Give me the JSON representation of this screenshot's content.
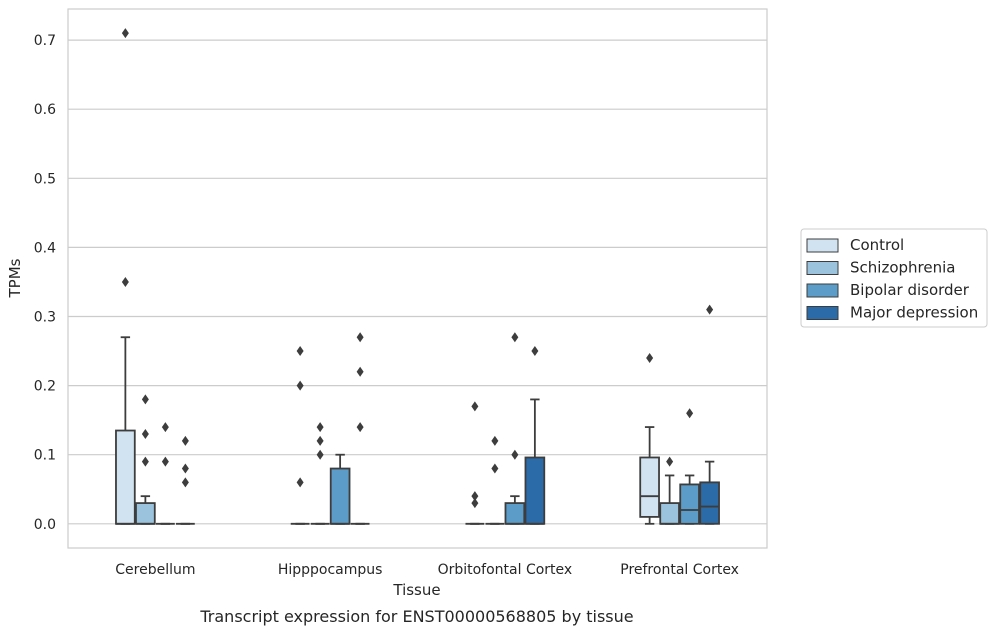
{
  "chart_data": {
    "type": "box",
    "caption": "Transcript expression for ENST00000568805 by tissue",
    "xlabel": "Tissue",
    "ylabel": "TPMs",
    "categories": [
      "Cerebellum",
      "Hipppocampus",
      "Orbitofontal Cortex",
      "Prefrontal Cortex"
    ],
    "ylim": [
      -0.035,
      0.745
    ],
    "yticks": [
      0.0,
      0.1,
      0.2,
      0.3,
      0.4,
      0.5,
      0.6,
      0.7
    ],
    "ytick_labels": [
      "0.0",
      "0.1",
      "0.2",
      "0.3",
      "0.4",
      "0.5",
      "0.6",
      "0.7"
    ],
    "grid": "horizontal",
    "legend_position": "outside-right",
    "series": [
      {
        "name": "Control",
        "color": "#d1e2f0",
        "boxes": [
          {
            "q1": 0.0,
            "median": 0.0,
            "q3": 0.135,
            "whisker_low": 0.0,
            "whisker_high": 0.27,
            "outliers": [
              0.35,
              0.71
            ]
          },
          {
            "q1": 0.0,
            "median": 0.0,
            "q3": 0.0,
            "whisker_low": 0.0,
            "whisker_high": 0.0,
            "outliers": [
              0.06,
              0.2,
              0.25
            ]
          },
          {
            "q1": 0.0,
            "median": 0.0,
            "q3": 0.0,
            "whisker_low": 0.0,
            "whisker_high": 0.0,
            "outliers": [
              0.03,
              0.04,
              0.17
            ]
          },
          {
            "q1": 0.01,
            "median": 0.04,
            "q3": 0.096,
            "whisker_low": 0.0,
            "whisker_high": 0.14,
            "outliers": [
              0.24
            ]
          }
        ]
      },
      {
        "name": "Schizophrenia",
        "color": "#9bc3dd",
        "boxes": [
          {
            "q1": 0.0,
            "median": 0.0,
            "q3": 0.03,
            "whisker_low": 0.0,
            "whisker_high": 0.04,
            "outliers": [
              0.09,
              0.13,
              0.18
            ]
          },
          {
            "q1": 0.0,
            "median": 0.0,
            "q3": 0.0,
            "whisker_low": 0.0,
            "whisker_high": 0.0,
            "outliers": [
              0.1,
              0.12,
              0.14
            ]
          },
          {
            "q1": 0.0,
            "median": 0.0,
            "q3": 0.0,
            "whisker_low": 0.0,
            "whisker_high": 0.0,
            "outliers": [
              0.08,
              0.12
            ]
          },
          {
            "q1": 0.0,
            "median": 0.0,
            "q3": 0.03,
            "whisker_low": 0.0,
            "whisker_high": 0.07,
            "outliers": [
              0.09
            ]
          }
        ]
      },
      {
        "name": "Bipolar disorder",
        "color": "#5b9cc8",
        "boxes": [
          {
            "q1": 0.0,
            "median": 0.0,
            "q3": 0.0,
            "whisker_low": 0.0,
            "whisker_high": 0.0,
            "outliers": [
              0.09,
              0.14
            ]
          },
          {
            "q1": 0.0,
            "median": 0.0,
            "q3": 0.08,
            "whisker_low": 0.0,
            "whisker_high": 0.1,
            "outliers": []
          },
          {
            "q1": 0.0,
            "median": 0.0,
            "q3": 0.03,
            "whisker_low": 0.0,
            "whisker_high": 0.04,
            "outliers": [
              0.1,
              0.27
            ]
          },
          {
            "q1": 0.0,
            "median": 0.02,
            "q3": 0.057,
            "whisker_low": 0.0,
            "whisker_high": 0.07,
            "outliers": [
              0.16
            ]
          }
        ]
      },
      {
        "name": "Major depression",
        "color": "#2b6ba8",
        "boxes": [
          {
            "q1": 0.0,
            "median": 0.0,
            "q3": 0.0,
            "whisker_low": 0.0,
            "whisker_high": 0.0,
            "outliers": [
              0.06,
              0.08,
              0.12
            ]
          },
          {
            "q1": 0.0,
            "median": 0.0,
            "q3": 0.0,
            "whisker_low": 0.0,
            "whisker_high": 0.0,
            "outliers": [
              0.14,
              0.22,
              0.27
            ]
          },
          {
            "q1": 0.0,
            "median": 0.0,
            "q3": 0.096,
            "whisker_low": 0.0,
            "whisker_high": 0.18,
            "outliers": [
              0.25
            ]
          },
          {
            "q1": 0.0,
            "median": 0.025,
            "q3": 0.06,
            "whisker_low": 0.0,
            "whisker_high": 0.09,
            "outliers": [
              0.31
            ]
          }
        ]
      }
    ]
  }
}
